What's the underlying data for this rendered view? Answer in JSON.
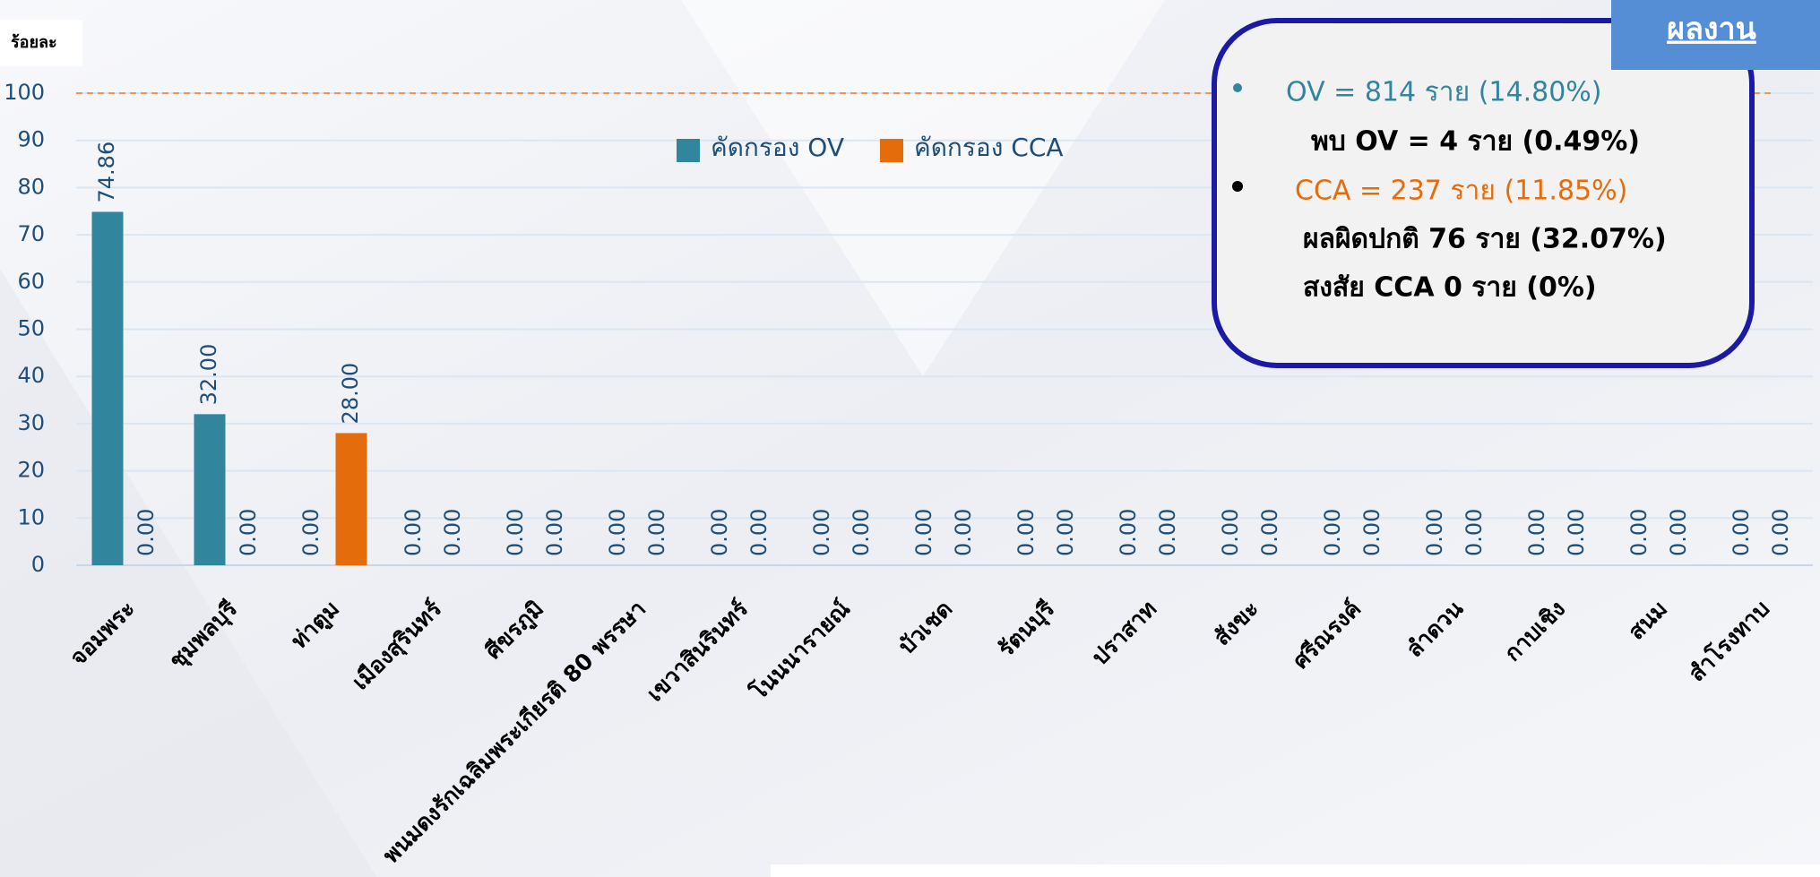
{
  "chart_data": {
    "type": "bar",
    "y_label": "ร้อยละ",
    "categories": [
      "จอมพระ",
      "ชุมพลบุรี",
      "ท่าตูม",
      "เมืองสุรินทร์",
      "ศีขรภูมิ",
      "พนมดงรักเฉลิมพระเกียรติ 80 พรรษา",
      "เขวาสินรินทร์",
      "โนนนารายณ์",
      "บัวเชด",
      "รัตนบุรี",
      "ปราสาท",
      "สังขะ",
      "ศรีณรงค์",
      "ลำดวน",
      "กาบเชิง",
      "สนม",
      "สำโรงทาบ"
    ],
    "series": [
      {
        "name": "คัดกรอง OV",
        "color": "#31859c",
        "values": [
          74.86,
          32,
          0,
          0,
          0,
          0,
          0,
          0,
          0,
          0,
          0,
          0,
          0,
          0,
          0,
          0,
          0
        ],
        "value_labels": [
          "74.86",
          "32.00",
          "0.00",
          "0.00",
          "0.00",
          "0.00",
          "0.00",
          "0.00",
          "0.00",
          "0.00",
          "0.00",
          "0.00",
          "0.00",
          "0.00",
          "0.00",
          "0.00",
          "0.00"
        ]
      },
      {
        "name": "คัดกรอง CCA",
        "color": "#e46c0a",
        "values": [
          0,
          0,
          28,
          0,
          0,
          0,
          0,
          0,
          0,
          0,
          0,
          0,
          0,
          0,
          0,
          0,
          0
        ],
        "value_labels": [
          "0.00",
          "0.00",
          "28.00",
          "0.00",
          "0.00",
          "0.00",
          "0.00",
          "0.00",
          "0.00",
          "0.00",
          "0.00",
          "0.00",
          "0.00",
          "0.00",
          "0.00",
          "0.00",
          "0.00"
        ]
      }
    ],
    "ylim": [
      0,
      100
    ],
    "yticks": [
      0,
      10,
      20,
      30,
      40,
      50,
      60,
      70,
      80,
      90,
      100
    ],
    "grid": true,
    "reference_line": {
      "value": 100,
      "color": "#f79646"
    },
    "info_box": {
      "title": "ผลงาน",
      "lines": [
        "OV = 814 ราย  (14.80%)",
        "พบ OV = 4 ราย (0.49%)",
        "CCA = 237 ราย (11.85%)",
        "ผลผิดปกติ 76 ราย (32.07%)",
        "สงสัย CCA 0 ราย (0%)"
      ]
    }
  }
}
